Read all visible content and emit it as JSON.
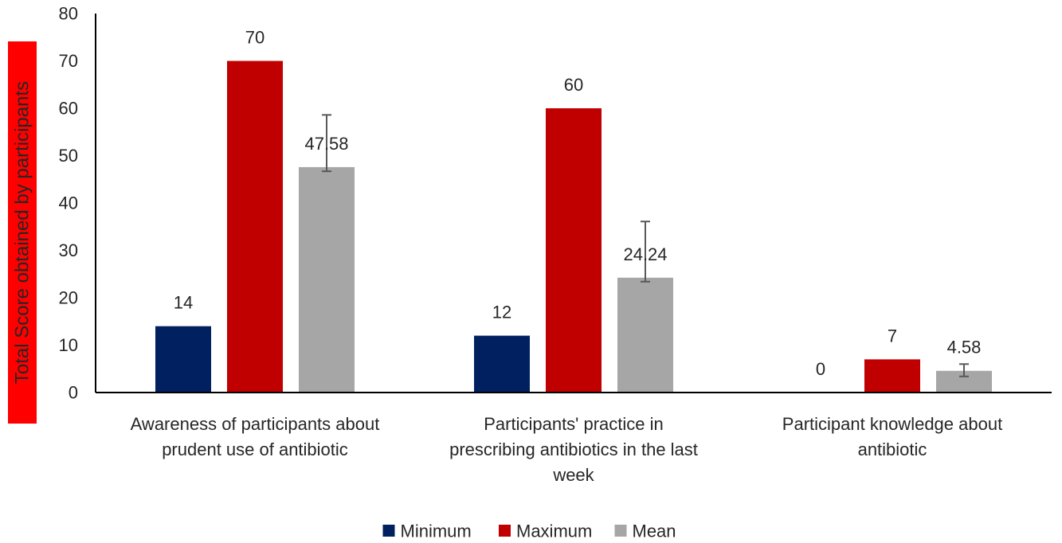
{
  "chart_data": {
    "type": "bar",
    "title": "",
    "xlabel": "",
    "ylabel": "Total Score obtained by participants",
    "ylim": [
      0,
      80
    ],
    "yticks": [
      0,
      10,
      20,
      30,
      40,
      50,
      60,
      70,
      80
    ],
    "grid": false,
    "legend_position": "bottom",
    "categories": [
      [
        "Awareness of participants about",
        "prudent use of antibiotic"
      ],
      [
        "Participants' practice in",
        "prescribing antibiotics in the last",
        "week"
      ],
      [
        "Participant knowledge about",
        "antibiotic"
      ]
    ],
    "series": [
      {
        "name": "Minimum",
        "color": "#002060",
        "values": [
          14,
          12,
          0
        ],
        "labels": [
          "14",
          "12",
          "0"
        ]
      },
      {
        "name": "Maximum",
        "color": "#C00000",
        "values": [
          70,
          60,
          7
        ],
        "labels": [
          "70",
          "60",
          "7"
        ]
      },
      {
        "name": "Mean",
        "color": "#A6A6A6",
        "values": [
          47.58,
          24.24,
          4.58
        ],
        "labels": [
          "47.58",
          "24.24",
          "4.58"
        ],
        "error_low": [
          46.7,
          23.4,
          3.4
        ],
        "error_high": [
          58.6,
          36.1,
          6.0
        ]
      }
    ],
    "ylabel_highlight_color": "#FF0000"
  }
}
